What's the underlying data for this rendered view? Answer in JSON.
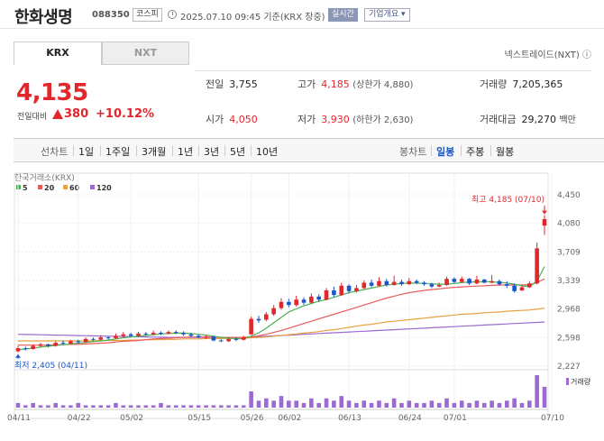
{
  "header": {
    "stock_name": "한화생명",
    "stock_code": "088350",
    "market": "코스피",
    "timestamp": "2025.07.10 09:45  기준(KRX 장중)",
    "realtime_label": "실시간",
    "overview_label": "기업개요 ▾"
  },
  "tabs": [
    {
      "label": "KRX",
      "active": true
    },
    {
      "label": "NXT",
      "active": false
    }
  ],
  "nextrade_link": "넥스트레이드(NXT) ⓘ",
  "price": {
    "current": "4,135",
    "change_label": "전일대비",
    "change_value": "380",
    "change_rate": "+10.12%"
  },
  "info": {
    "prev_close_label": "전일",
    "prev_close": "3,755",
    "high_label": "고가",
    "high": "4,185",
    "upper_limit": "(상한가 4,880)",
    "volume_label": "거래량",
    "volume": "7,205,365",
    "open_label": "시가",
    "open": "4,050",
    "low_label": "저가",
    "low": "3,930",
    "lower_limit": "(하한가 2,630)",
    "value_label": "거래대금",
    "value": "29,270",
    "value_unit": "백만"
  },
  "toolbar": {
    "line_label": "선차트",
    "periods": [
      "1일",
      "1주일",
      "3개월",
      "1년",
      "3년",
      "5년",
      "10년"
    ],
    "candle_label": "봉차트",
    "candle_periods": [
      "일봉",
      "주봉",
      "월봉"
    ],
    "active_candle": "일봉"
  },
  "colors": {
    "up": "#e1262c",
    "down": "#1a56c9",
    "ma5": "#4caf50",
    "ma20": "#e85a5a",
    "ma60": "#e8a040",
    "ma120": "#9c6ad0",
    "volume": "#9c6ad0"
  },
  "chart_data": {
    "type": "candlestick",
    "source_label": "한국거래소(KRX)",
    "legend": [
      "5",
      "20",
      "60",
      "120"
    ],
    "y_ticks": [
      "4,450",
      "4,080",
      "3,709",
      "3,339",
      "2,968",
      "2,598",
      "2,227"
    ],
    "ylim": [
      2227,
      4450
    ],
    "x_ticks": [
      "04/11",
      "04/22",
      "05/02",
      "05/15",
      "05/26",
      "06/02",
      "06/13",
      "06/24",
      "07/01",
      "07/10"
    ],
    "high_annotation": "최고 4,185 (07/10)",
    "low_annotation": "최저 2,405 (04/11)",
    "volume_legend": "거래량",
    "candles": [
      {
        "o": 2420,
        "c": 2460,
        "h": 2490,
        "l": 2405
      },
      {
        "o": 2460,
        "c": 2450,
        "h": 2480,
        "l": 2430
      },
      {
        "o": 2450,
        "c": 2490,
        "h": 2510,
        "l": 2440
      },
      {
        "o": 2490,
        "c": 2510,
        "h": 2530,
        "l": 2470
      },
      {
        "o": 2510,
        "c": 2490,
        "h": 2520,
        "l": 2470
      },
      {
        "o": 2490,
        "c": 2530,
        "h": 2550,
        "l": 2480
      },
      {
        "o": 2530,
        "c": 2520,
        "h": 2560,
        "l": 2500
      },
      {
        "o": 2520,
        "c": 2550,
        "h": 2570,
        "l": 2510
      },
      {
        "o": 2550,
        "c": 2540,
        "h": 2570,
        "l": 2520
      },
      {
        "o": 2540,
        "c": 2580,
        "h": 2600,
        "l": 2530
      },
      {
        "o": 2580,
        "c": 2570,
        "h": 2600,
        "l": 2550
      },
      {
        "o": 2570,
        "c": 2600,
        "h": 2630,
        "l": 2560
      },
      {
        "o": 2600,
        "c": 2590,
        "h": 2620,
        "l": 2570
      },
      {
        "o": 2590,
        "c": 2620,
        "h": 2650,
        "l": 2580
      },
      {
        "o": 2620,
        "c": 2640,
        "h": 2670,
        "l": 2600
      },
      {
        "o": 2640,
        "c": 2620,
        "h": 2660,
        "l": 2610
      },
      {
        "o": 2620,
        "c": 2650,
        "h": 2670,
        "l": 2610
      },
      {
        "o": 2650,
        "c": 2640,
        "h": 2670,
        "l": 2620
      },
      {
        "o": 2640,
        "c": 2660,
        "h": 2690,
        "l": 2630
      },
      {
        "o": 2660,
        "c": 2650,
        "h": 2680,
        "l": 2630
      },
      {
        "o": 2650,
        "c": 2670,
        "h": 2690,
        "l": 2640
      },
      {
        "o": 2670,
        "c": 2660,
        "h": 2690,
        "l": 2640
      },
      {
        "o": 2660,
        "c": 2640,
        "h": 2680,
        "l": 2620
      },
      {
        "o": 2640,
        "c": 2620,
        "h": 2660,
        "l": 2600
      },
      {
        "o": 2620,
        "c": 2600,
        "h": 2640,
        "l": 2590
      },
      {
        "o": 2600,
        "c": 2610,
        "h": 2630,
        "l": 2580
      },
      {
        "o": 2610,
        "c": 2560,
        "h": 2620,
        "l": 2550
      },
      {
        "o": 2560,
        "c": 2550,
        "h": 2580,
        "l": 2540
      },
      {
        "o": 2550,
        "c": 2580,
        "h": 2600,
        "l": 2540
      },
      {
        "o": 2580,
        "c": 2570,
        "h": 2600,
        "l": 2550
      },
      {
        "o": 2570,
        "c": 2600,
        "h": 2620,
        "l": 2560
      },
      {
        "o": 2640,
        "c": 2840,
        "h": 2870,
        "l": 2630
      },
      {
        "o": 2840,
        "c": 2820,
        "h": 2880,
        "l": 2790
      },
      {
        "o": 2830,
        "c": 2900,
        "h": 2930,
        "l": 2810
      },
      {
        "o": 2900,
        "c": 2980,
        "h": 3020,
        "l": 2880
      },
      {
        "o": 2980,
        "c": 3060,
        "h": 3110,
        "l": 2960
      },
      {
        "o": 3060,
        "c": 3020,
        "h": 3100,
        "l": 2990
      },
      {
        "o": 3020,
        "c": 3090,
        "h": 3140,
        "l": 3000
      },
      {
        "o": 3090,
        "c": 3050,
        "h": 3120,
        "l": 3020
      },
      {
        "o": 3050,
        "c": 3130,
        "h": 3170,
        "l": 3040
      },
      {
        "o": 3130,
        "c": 3090,
        "h": 3160,
        "l": 3060
      },
      {
        "o": 3090,
        "c": 3210,
        "h": 3240,
        "l": 3080
      },
      {
        "o": 3210,
        "c": 3150,
        "h": 3260,
        "l": 3120
      },
      {
        "o": 3150,
        "c": 3270,
        "h": 3310,
        "l": 3140
      },
      {
        "o": 3270,
        "c": 3200,
        "h": 3290,
        "l": 3170
      },
      {
        "o": 3200,
        "c": 3240,
        "h": 3280,
        "l": 3180
      },
      {
        "o": 3240,
        "c": 3310,
        "h": 3340,
        "l": 3230
      },
      {
        "o": 3310,
        "c": 3270,
        "h": 3350,
        "l": 3250
      },
      {
        "o": 3270,
        "c": 3330,
        "h": 3380,
        "l": 3260
      },
      {
        "o": 3330,
        "c": 3280,
        "h": 3360,
        "l": 3260
      },
      {
        "o": 3280,
        "c": 3320,
        "h": 3400,
        "l": 3270
      },
      {
        "o": 3320,
        "c": 3290,
        "h": 3350,
        "l": 3270
      },
      {
        "o": 3290,
        "c": 3330,
        "h": 3370,
        "l": 3280
      },
      {
        "o": 3330,
        "c": 3310,
        "h": 3350,
        "l": 3290
      },
      {
        "o": 3310,
        "c": 3290,
        "h": 3330,
        "l": 3270
      },
      {
        "o": 3290,
        "c": 3260,
        "h": 3310,
        "l": 3240
      },
      {
        "o": 3260,
        "c": 3280,
        "h": 3310,
        "l": 3250
      },
      {
        "o": 3280,
        "c": 3360,
        "h": 3390,
        "l": 3270
      },
      {
        "o": 3360,
        "c": 3320,
        "h": 3380,
        "l": 3300
      },
      {
        "o": 3320,
        "c": 3360,
        "h": 3390,
        "l": 3310
      },
      {
        "o": 3360,
        "c": 3300,
        "h": 3370,
        "l": 3280
      },
      {
        "o": 3300,
        "c": 3350,
        "h": 3400,
        "l": 3290
      },
      {
        "o": 3350,
        "c": 3310,
        "h": 3360,
        "l": 3300
      },
      {
        "o": 3310,
        "c": 3330,
        "h": 3410,
        "l": 3300
      },
      {
        "o": 3330,
        "c": 3290,
        "h": 3350,
        "l": 3270
      },
      {
        "o": 3290,
        "c": 3270,
        "h": 3330,
        "l": 3240
      },
      {
        "o": 3270,
        "c": 3200,
        "h": 3300,
        "l": 3180
      },
      {
        "o": 3210,
        "c": 3250,
        "h": 3270,
        "l": 3200
      },
      {
        "o": 3250,
        "c": 3300,
        "h": 3330,
        "l": 3240
      },
      {
        "o": 3300,
        "c": 3755,
        "h": 3830,
        "l": 3290
      },
      {
        "o": 4050,
        "c": 4135,
        "h": 4185,
        "l": 3930
      }
    ],
    "ma5": [
      2440,
      2450,
      2460,
      2475,
      2485,
      2495,
      2505,
      2515,
      2525,
      2535,
      2545,
      2555,
      2565,
      2580,
      2595,
      2605,
      2615,
      2625,
      2635,
      2645,
      2650,
      2655,
      2655,
      2650,
      2640,
      2630,
      2615,
      2600,
      2590,
      2585,
      2580,
      2615,
      2660,
      2720,
      2790,
      2860,
      2930,
      2970,
      3010,
      3040,
      3070,
      3090,
      3120,
      3150,
      3180,
      3200,
      3220,
      3240,
      3260,
      3280,
      3290,
      3300,
      3305,
      3305,
      3300,
      3295,
      3290,
      3290,
      3300,
      3310,
      3320,
      3320,
      3325,
      3320,
      3315,
      3305,
      3290,
      3270,
      3260,
      3330,
      3520
    ],
    "ma20": [
      2500,
      2500,
      2500,
      2500,
      2500,
      2505,
      2505,
      2510,
      2510,
      2515,
      2520,
      2525,
      2530,
      2540,
      2550,
      2555,
      2560,
      2570,
      2580,
      2585,
      2590,
      2595,
      2600,
      2605,
      2605,
      2605,
      2605,
      2600,
      2600,
      2600,
      2600,
      2605,
      2620,
      2640,
      2665,
      2690,
      2720,
      2750,
      2780,
      2810,
      2840,
      2870,
      2900,
      2930,
      2960,
      2990,
      3020,
      3050,
      3080,
      3110,
      3135,
      3160,
      3180,
      3195,
      3210,
      3220,
      3230,
      3240,
      3250,
      3255,
      3260,
      3265,
      3270,
      3275,
      3280,
      3280,
      3280,
      3280,
      3285,
      3310,
      3360
    ],
    "ma60": [
      2555,
      2555,
      2555,
      2555,
      2555,
      2555,
      2555,
      2555,
      2555,
      2555,
      2555,
      2560,
      2560,
      2560,
      2560,
      2565,
      2565,
      2570,
      2570,
      2570,
      2575,
      2575,
      2580,
      2580,
      2580,
      2585,
      2585,
      2585,
      2590,
      2590,
      2590,
      2595,
      2600,
      2605,
      2615,
      2625,
      2635,
      2645,
      2655,
      2665,
      2675,
      2690,
      2700,
      2715,
      2730,
      2745,
      2760,
      2770,
      2785,
      2800,
      2810,
      2820,
      2830,
      2840,
      2850,
      2860,
      2870,
      2880,
      2890,
      2900,
      2905,
      2910,
      2920,
      2925,
      2930,
      2940,
      2945,
      2950,
      2955,
      2965,
      2980
    ],
    "ma120": [
      2640,
      2638,
      2636,
      2634,
      2632,
      2630,
      2628,
      2626,
      2624,
      2622,
      2620,
      2618,
      2616,
      2614,
      2612,
      2610,
      2608,
      2606,
      2604,
      2602,
      2600,
      2600,
      2600,
      2600,
      2600,
      2600,
      2600,
      2600,
      2600,
      2600,
      2600,
      2605,
      2610,
      2615,
      2620,
      2625,
      2630,
      2635,
      2640,
      2645,
      2650,
      2655,
      2660,
      2665,
      2670,
      2675,
      2680,
      2685,
      2690,
      2695,
      2700,
      2705,
      2710,
      2715,
      2720,
      2725,
      2730,
      2735,
      2740,
      2745,
      2750,
      2755,
      2760,
      2765,
      2770,
      2775,
      2780,
      2785,
      2790,
      2795,
      2800
    ],
    "volume": [
      2,
      1,
      2,
      1,
      1,
      2,
      1,
      1,
      2,
      1,
      1,
      1,
      1,
      2,
      1,
      1,
      1,
      1,
      1,
      2,
      1,
      1,
      1,
      1,
      1,
      1,
      1,
      1,
      1,
      1,
      1,
      7,
      3,
      4,
      3,
      5,
      3,
      3,
      2,
      4,
      2,
      4,
      3,
      5,
      3,
      2,
      3,
      2,
      3,
      2,
      4,
      2,
      3,
      2,
      2,
      3,
      2,
      4,
      2,
      3,
      2,
      3,
      2,
      3,
      2,
      3,
      4,
      2,
      3,
      14,
      9
    ]
  }
}
